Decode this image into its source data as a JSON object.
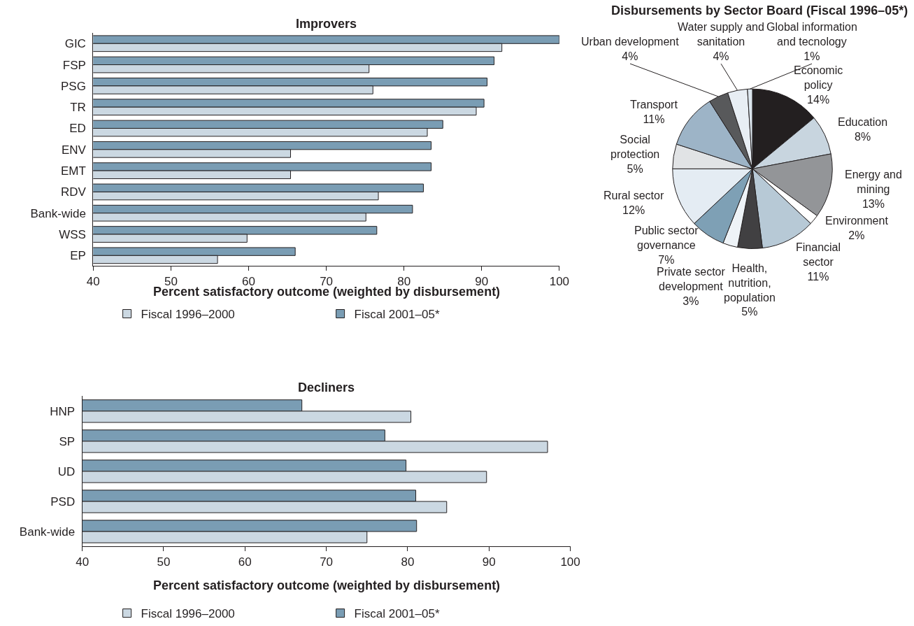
{
  "chart_data": [
    {
      "type": "bar",
      "orientation": "horizontal",
      "title": "Improvers",
      "xlabel": "Percent satisfactory outcome (weighted by disbursement)",
      "categories": [
        "GIC",
        "FSP",
        "PSG",
        "TR",
        "ED",
        "ENV",
        "EMT",
        "RDV",
        "Bank-wide",
        "WSS",
        "EP"
      ],
      "series": [
        {
          "name": "Fiscal 1996–2000",
          "color": "#cbd8e2",
          "values": [
            92.6,
            75.5,
            76.0,
            89.3,
            83.0,
            65.4,
            65.4,
            76.7,
            75.1,
            59.8,
            56.0
          ]
        },
        {
          "name": "Fiscal 2001–05*",
          "color": "#7a9db4",
          "values": [
            100.0,
            91.6,
            90.7,
            90.3,
            85.0,
            83.5,
            83.5,
            82.5,
            81.1,
            76.5,
            66.0
          ]
        }
      ],
      "xlim": [
        40,
        100
      ],
      "xticks": [
        40,
        50,
        60,
        70,
        80,
        90,
        100
      ],
      "legend": "bottom"
    },
    {
      "type": "pie",
      "title": "Disbursements by Sector Board (Fiscal 1996–05*)",
      "categories": [
        "Economic policy",
        "Education",
        "Energy and mining",
        "Environment",
        "Financial sector",
        "Health, nutrition, population",
        "Private sector development",
        "Public sector governance",
        "Rural sector",
        "Social protection",
        "Transport",
        "Urban development",
        "Water supply and sanitation",
        "Global information and tecnology"
      ],
      "values": [
        14,
        8,
        13,
        2,
        11,
        5,
        3,
        7,
        12,
        5,
        11,
        4,
        4,
        1
      ],
      "colors": [
        "#231f20",
        "#c8d5df",
        "#939598",
        "#ffffff",
        "#b7c9d6",
        "#414042",
        "#eef3f7",
        "#7ea0b5",
        "#e4ecf3",
        "#e1e3e5",
        "#9db4c7",
        "#58595b",
        "#e8eef4",
        "#dce6ee"
      ],
      "value_labels": [
        "14%",
        "8%",
        "13%",
        "2%",
        "11%",
        "5%",
        "3%",
        "7%",
        "12%",
        "5%",
        "11%",
        "4%",
        "4%",
        "1%"
      ]
    },
    {
      "type": "bar",
      "orientation": "horizontal",
      "title": "Decliners",
      "xlabel": "Percent satisfactory outcome (weighted by disbursement)",
      "categories": [
        "HNP",
        "SP",
        "UD",
        "PSD",
        "Bank-wide"
      ],
      "series": [
        {
          "name": "Fiscal 1996–2000",
          "color": "#cbd8e2",
          "values": [
            80.4,
            97.2,
            89.7,
            84.8,
            75.0
          ]
        },
        {
          "name": "Fiscal 2001–05*",
          "color": "#7a9db4",
          "values": [
            67.0,
            77.2,
            79.8,
            81.0,
            81.1
          ]
        }
      ],
      "xlim": [
        40,
        100
      ],
      "xticks": [
        40,
        50,
        60,
        70,
        80,
        90,
        100
      ],
      "legend": "bottom"
    }
  ]
}
